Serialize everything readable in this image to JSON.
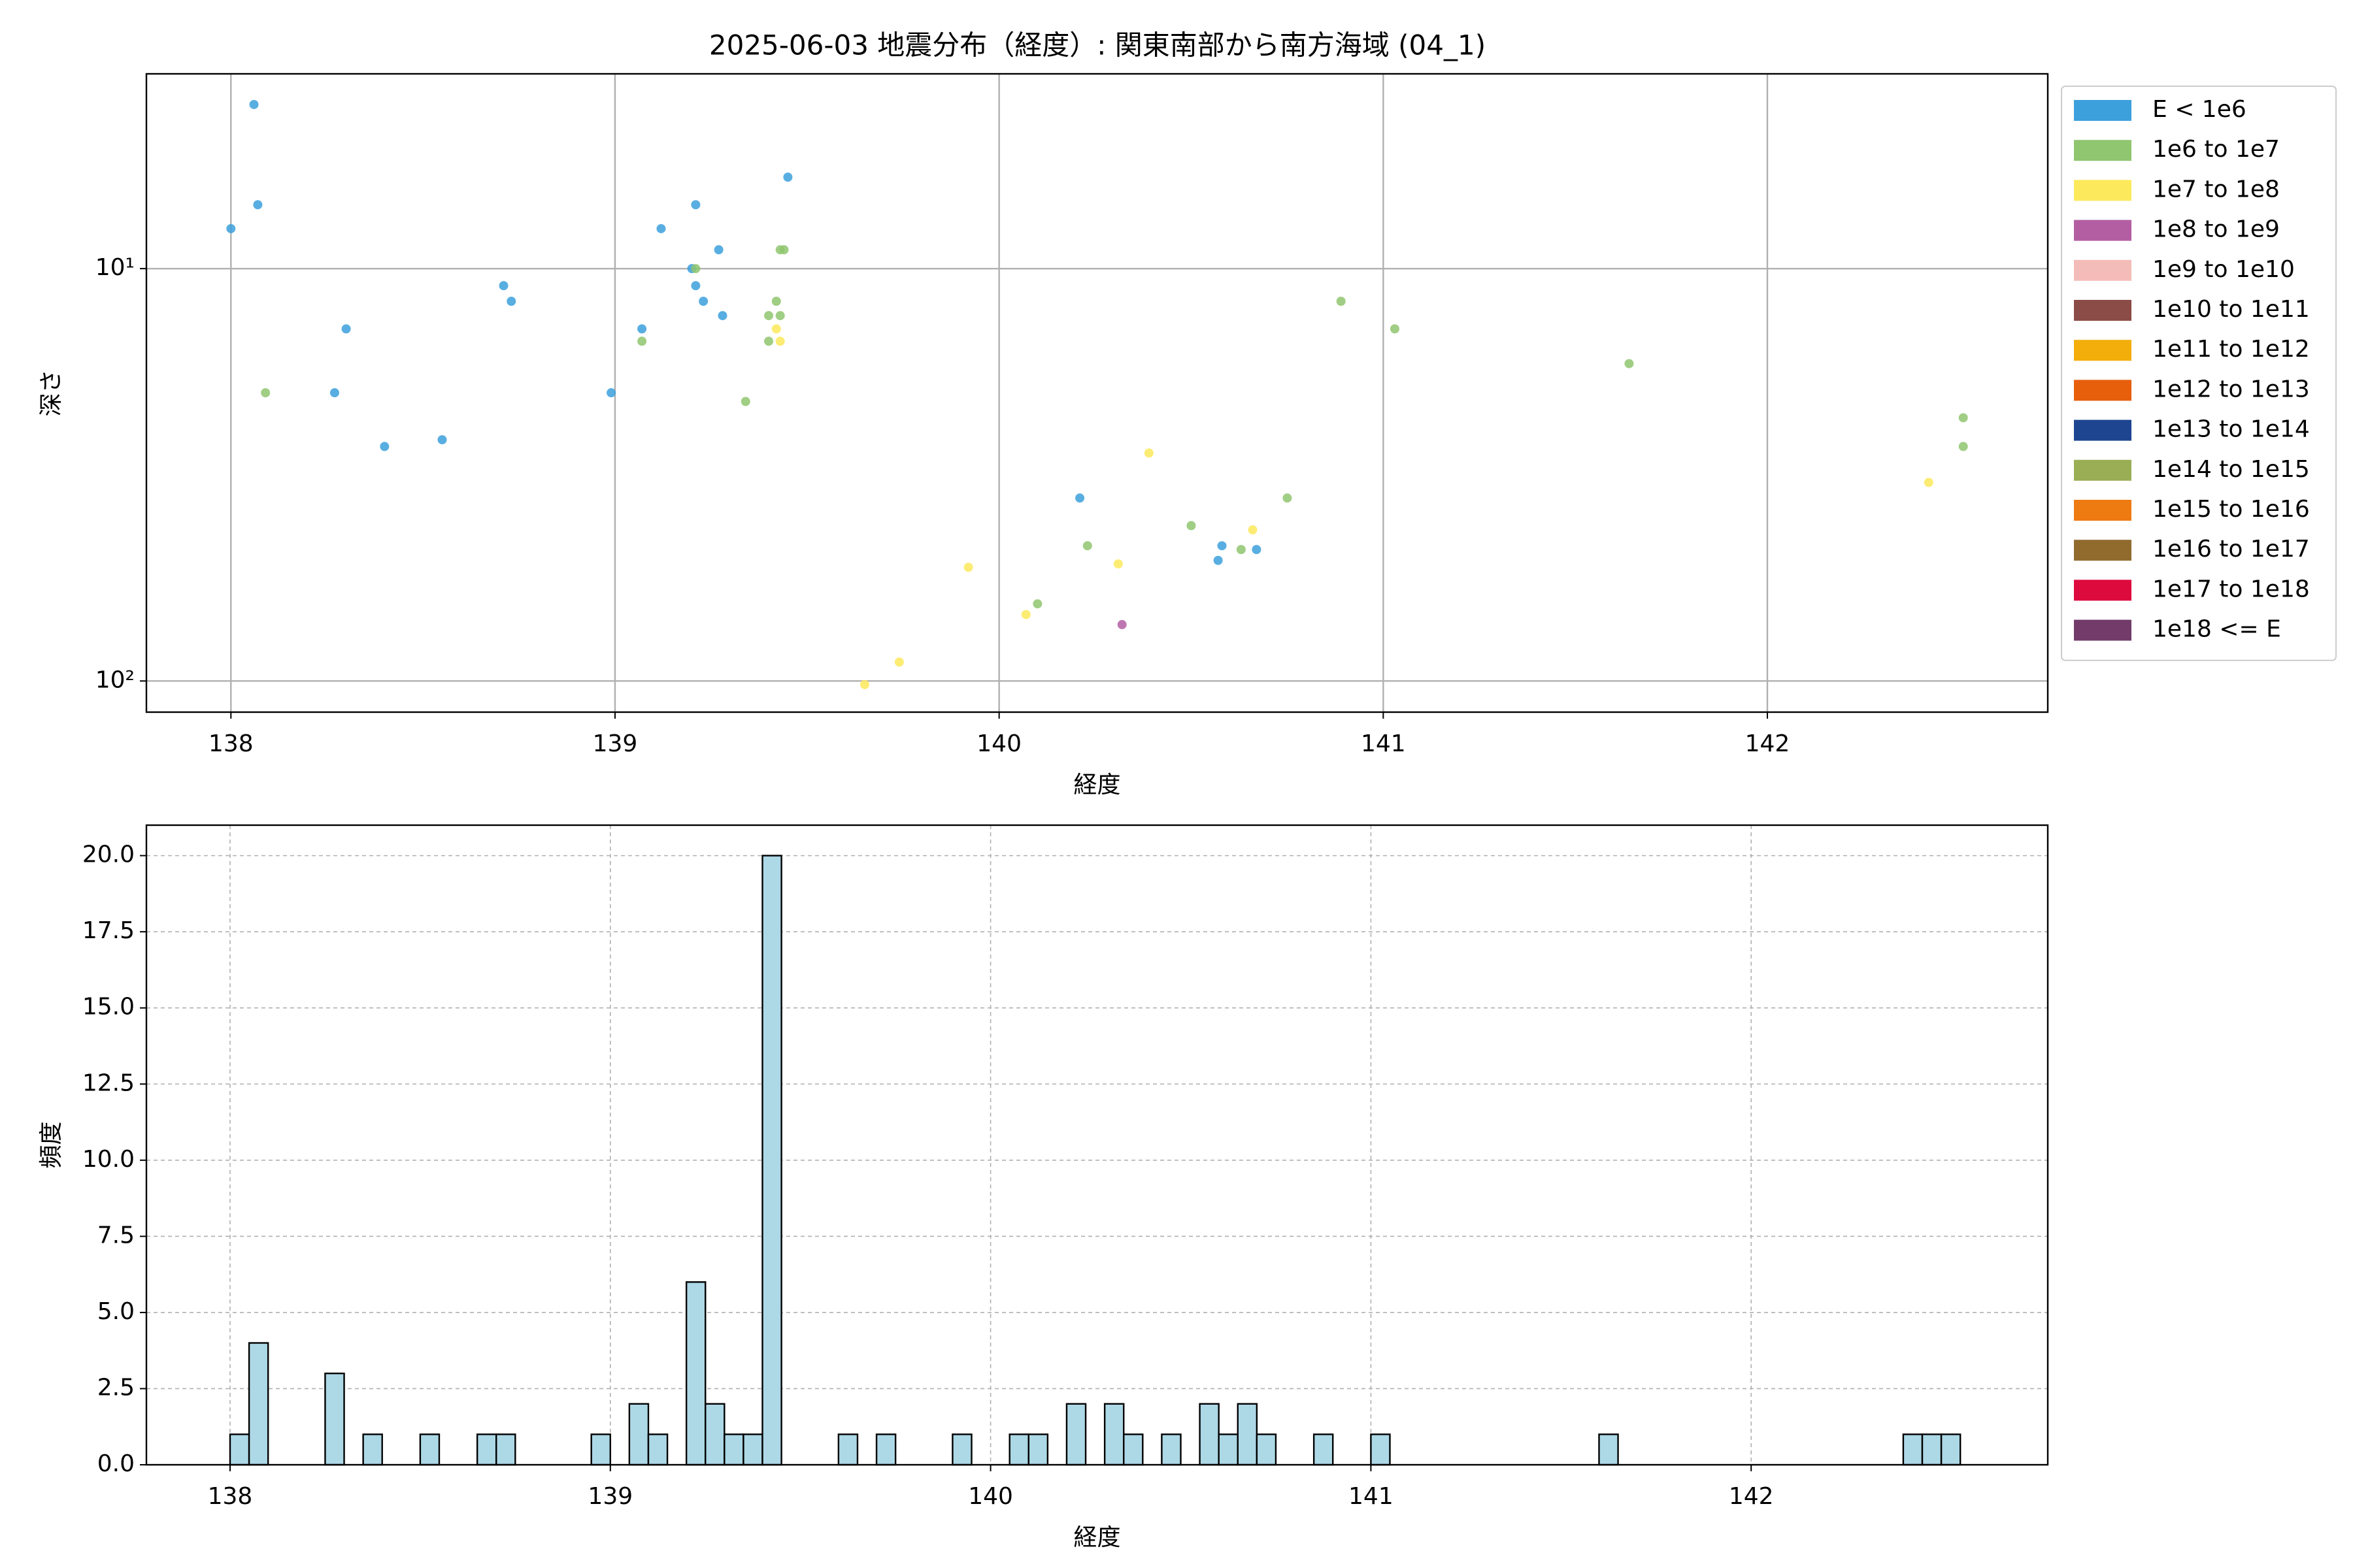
{
  "chart_data": [
    {
      "type": "scatter",
      "title": "2025-06-03 地震分布（経度）: 関東南部から南方海域 (04_1)",
      "xlabel": "経度",
      "ylabel": "深さ",
      "xlim": [
        137.78,
        142.73
      ],
      "xticks": [
        138,
        139,
        140,
        141,
        142
      ],
      "ylim": [
        3.37,
        119
      ],
      "log_y": true,
      "y_inverted": true,
      "yticks": [
        {
          "value": 10,
          "label": "10¹"
        },
        {
          "value": 100,
          "label": "10²"
        }
      ],
      "grid": true,
      "grid_style": "solid",
      "legend": "outside-right",
      "series": [
        {
          "name": "E < 1e6",
          "color": "#3ca0dc",
          "x": [
            138.06,
            138.07,
            138.0,
            138.3,
            138.27,
            138.4,
            138.55,
            138.71,
            138.73,
            138.99,
            139.07,
            139.12,
            139.21,
            139.27,
            139.2,
            139.21,
            139.23,
            139.28,
            139.45,
            140.21,
            140.58,
            140.57,
            140.67
          ],
          "values": [
            4,
            7,
            8,
            14,
            20,
            27,
            26,
            11,
            12,
            20,
            14,
            8,
            7,
            9,
            10,
            11,
            12,
            13,
            6,
            36,
            47,
            51,
            48
          ]
        },
        {
          "name": "1e6 to 1e7",
          "color": "#8fc66f",
          "x": [
            138.09,
            139.21,
            139.07,
            139.34,
            139.43,
            139.44,
            139.42,
            139.4,
            139.43,
            139.4,
            140.89,
            141.03,
            141.64,
            142.51,
            142.51,
            140.75,
            140.5,
            140.23,
            140.63,
            140.1
          ],
          "values": [
            20,
            10,
            15,
            21,
            9,
            9,
            12,
            13,
            13,
            15,
            12,
            14,
            17,
            23,
            27,
            36,
            42,
            47,
            48,
            65
          ]
        },
        {
          "name": "1e7 to 1e8",
          "color": "#fde95c",
          "x": [
            139.42,
            139.43,
            140.39,
            140.66,
            140.31,
            139.92,
            140.07,
            139.74,
            139.65,
            142.42
          ],
          "values": [
            14,
            15,
            28,
            43,
            52,
            53,
            69,
            90,
            102,
            33
          ]
        },
        {
          "name": "1e8 to 1e9",
          "color": "#b35ea3",
          "x": [
            140.32
          ],
          "values": [
            73
          ]
        },
        {
          "name": "1e9 to 1e10",
          "color": "#f4bcb8",
          "x": [],
          "values": []
        },
        {
          "name": "1e10 to 1e11",
          "color": "#8b4b46",
          "x": [],
          "values": []
        },
        {
          "name": "1e11 to 1e12",
          "color": "#f3ae0c",
          "x": [],
          "values": []
        },
        {
          "name": "1e12 to 1e13",
          "color": "#e75e0b",
          "x": [],
          "values": []
        },
        {
          "name": "1e13 to 1e14",
          "color": "#1d4590",
          "x": [],
          "values": []
        },
        {
          "name": "1e14 to 1e15",
          "color": "#99ae55",
          "x": [],
          "values": []
        },
        {
          "name": "1e15 to 1e16",
          "color": "#ee7a12",
          "x": [],
          "values": []
        },
        {
          "name": "1e16 to 1e17",
          "color": "#916b2e",
          "x": [],
          "values": []
        },
        {
          "name": "1e17 to 1e18",
          "color": "#dc0a3d",
          "x": [],
          "values": []
        },
        {
          "name": "1e18 <= E",
          "color": "#723b6a",
          "x": [],
          "values": []
        }
      ]
    },
    {
      "type": "histogram",
      "xlabel": "経度",
      "ylabel": "頻度",
      "xlim": [
        137.78,
        142.78
      ],
      "xticks": [
        138,
        139,
        140,
        141,
        142
      ],
      "ylim": [
        0,
        21
      ],
      "yticks": [
        {
          "value": 0,
          "label": "0.0"
        },
        {
          "value": 2.5,
          "label": "2.5"
        },
        {
          "value": 5,
          "label": "5.0"
        },
        {
          "value": 7.5,
          "label": "7.5"
        },
        {
          "value": 10,
          "label": "10.0"
        },
        {
          "value": 12.5,
          "label": "12.5"
        },
        {
          "value": 15,
          "label": "15.0"
        },
        {
          "value": 17.5,
          "label": "17.5"
        },
        {
          "value": 20,
          "label": "20.0"
        }
      ],
      "grid": true,
      "grid_style": "dashed",
      "color": "#add8e6",
      "edgecolor": "#000000",
      "bins": [
        138,
        138.05,
        138.1,
        138.15,
        138.2,
        138.25,
        138.3,
        138.35,
        138.4,
        138.45,
        138.5,
        138.55,
        138.6,
        138.65,
        138.7,
        138.75,
        138.8,
        138.85,
        138.9,
        138.95,
        139,
        139.05,
        139.1,
        139.15,
        139.2,
        139.25,
        139.3,
        139.35,
        139.4,
        139.45,
        139.5,
        139.55,
        139.6,
        139.65,
        139.7,
        139.75,
        139.8,
        139.85,
        139.9,
        139.95,
        140,
        140.05,
        140.1,
        140.15,
        140.2,
        140.25,
        140.3,
        140.35,
        140.4,
        140.45,
        140.5,
        140.55,
        140.6,
        140.65,
        140.7,
        140.75,
        140.8,
        140.85,
        140.9,
        140.95,
        141,
        141.05,
        141.1,
        141.15,
        141.2,
        141.25,
        141.3,
        141.35,
        141.4,
        141.45,
        141.5,
        141.55,
        141.6,
        141.65,
        141.7,
        141.75,
        141.8,
        141.85,
        141.9,
        141.95,
        142,
        142.05,
        142.1,
        142.15,
        142.2,
        142.25,
        142.3,
        142.35,
        142.4,
        142.45,
        142.5,
        142.55
      ],
      "values": [
        1,
        4,
        0,
        0,
        0,
        3,
        0,
        1,
        0,
        0,
        1,
        0,
        0,
        1,
        1,
        0,
        0,
        0,
        0,
        1,
        0,
        2,
        1,
        0,
        6,
        2,
        1,
        1,
        20,
        0,
        0,
        0,
        1,
        0,
        1,
        0,
        0,
        0,
        1,
        0,
        0,
        1,
        1,
        0,
        2,
        0,
        2,
        1,
        0,
        1,
        0,
        2,
        1,
        2,
        1,
        0,
        0,
        1,
        0,
        0,
        1,
        0,
        0,
        0,
        0,
        0,
        0,
        0,
        0,
        0,
        0,
        0,
        1,
        0,
        0,
        0,
        0,
        0,
        0,
        0,
        0,
        0,
        0,
        0,
        0,
        0,
        0,
        0,
        1,
        1,
        1
      ]
    }
  ]
}
